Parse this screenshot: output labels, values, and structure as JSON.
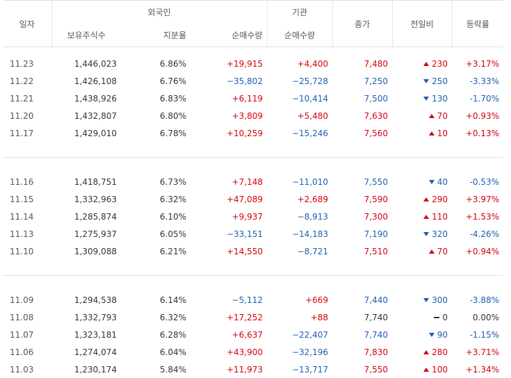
{
  "headers": {
    "date": "일자",
    "foreign": "외국인",
    "institution": "기관",
    "close": "종가",
    "change": "전일비",
    "rate": "등락률",
    "holdings": "보유주식수",
    "share_ratio": "지분율",
    "foreign_net": "순매수량",
    "inst_net": "순매수량"
  },
  "colors": {
    "up": "#d4000b",
    "down": "#1e5cb3",
    "neutral": "#333333"
  },
  "groups": [
    [
      {
        "date": "11.23",
        "holdings": "1,446,023",
        "ratio": "6.86%",
        "foreign_net": "+19,915",
        "foreign_dir": "up",
        "inst_net": "+4,400",
        "inst_dir": "up",
        "close": "7,480",
        "close_dir": "up",
        "change": "230",
        "change_dir": "up",
        "rate": "+3.17%"
      },
      {
        "date": "11.22",
        "holdings": "1,426,108",
        "ratio": "6.76%",
        "foreign_net": "−35,802",
        "foreign_dir": "dn",
        "inst_net": "−25,728",
        "inst_dir": "dn",
        "close": "7,250",
        "close_dir": "dn",
        "change": "250",
        "change_dir": "dn",
        "rate": "-3.33%"
      },
      {
        "date": "11.21",
        "holdings": "1,438,926",
        "ratio": "6.83%",
        "foreign_net": "+6,119",
        "foreign_dir": "up",
        "inst_net": "−10,414",
        "inst_dir": "dn",
        "close": "7,500",
        "close_dir": "dn",
        "change": "130",
        "change_dir": "dn",
        "rate": "-1.70%"
      },
      {
        "date": "11.20",
        "holdings": "1,432,807",
        "ratio": "6.80%",
        "foreign_net": "+3,809",
        "foreign_dir": "up",
        "inst_net": "+5,480",
        "inst_dir": "up",
        "close": "7,630",
        "close_dir": "up",
        "change": "70",
        "change_dir": "up",
        "rate": "+0.93%"
      },
      {
        "date": "11.17",
        "holdings": "1,429,010",
        "ratio": "6.78%",
        "foreign_net": "+10,259",
        "foreign_dir": "up",
        "inst_net": "−15,246",
        "inst_dir": "dn",
        "close": "7,560",
        "close_dir": "up",
        "change": "10",
        "change_dir": "up",
        "rate": "+0.13%"
      }
    ],
    [
      {
        "date": "11.16",
        "holdings": "1,418,751",
        "ratio": "6.73%",
        "foreign_net": "+7,148",
        "foreign_dir": "up",
        "inst_net": "−11,010",
        "inst_dir": "dn",
        "close": "7,550",
        "close_dir": "dn",
        "change": "40",
        "change_dir": "dn",
        "rate": "-0.53%"
      },
      {
        "date": "11.15",
        "holdings": "1,332,963",
        "ratio": "6.32%",
        "foreign_net": "+47,089",
        "foreign_dir": "up",
        "inst_net": "+2,689",
        "inst_dir": "up",
        "close": "7,590",
        "close_dir": "up",
        "change": "290",
        "change_dir": "up",
        "rate": "+3.97%"
      },
      {
        "date": "11.14",
        "holdings": "1,285,874",
        "ratio": "6.10%",
        "foreign_net": "+9,937",
        "foreign_dir": "up",
        "inst_net": "−8,913",
        "inst_dir": "dn",
        "close": "7,300",
        "close_dir": "up",
        "change": "110",
        "change_dir": "up",
        "rate": "+1.53%"
      },
      {
        "date": "11.13",
        "holdings": "1,275,937",
        "ratio": "6.05%",
        "foreign_net": "−33,151",
        "foreign_dir": "dn",
        "inst_net": "−14,183",
        "inst_dir": "dn",
        "close": "7,190",
        "close_dir": "dn",
        "change": "320",
        "change_dir": "dn",
        "rate": "-4.26%"
      },
      {
        "date": "11.10",
        "holdings": "1,309,088",
        "ratio": "6.21%",
        "foreign_net": "+14,550",
        "foreign_dir": "up",
        "inst_net": "−8,721",
        "inst_dir": "dn",
        "close": "7,510",
        "close_dir": "up",
        "change": "70",
        "change_dir": "up",
        "rate": "+0.94%"
      }
    ],
    [
      {
        "date": "11.09",
        "holdings": "1,294,538",
        "ratio": "6.14%",
        "foreign_net": "−5,112",
        "foreign_dir": "dn",
        "inst_net": "+669",
        "inst_dir": "up",
        "close": "7,440",
        "close_dir": "dn",
        "change": "300",
        "change_dir": "dn",
        "rate": "-3.88%"
      },
      {
        "date": "11.08",
        "holdings": "1,332,793",
        "ratio": "6.32%",
        "foreign_net": "+17,252",
        "foreign_dir": "up",
        "inst_net": "+88",
        "inst_dir": "up",
        "close": "7,740",
        "close_dir": "nt",
        "change": "0",
        "change_dir": "nt",
        "rate": "0.00%"
      },
      {
        "date": "11.07",
        "holdings": "1,323,181",
        "ratio": "6.28%",
        "foreign_net": "+6,637",
        "foreign_dir": "up",
        "inst_net": "−22,407",
        "inst_dir": "dn",
        "close": "7,740",
        "close_dir": "dn",
        "change": "90",
        "change_dir": "dn",
        "rate": "-1.15%"
      },
      {
        "date": "11.06",
        "holdings": "1,274,074",
        "ratio": "6.04%",
        "foreign_net": "+43,900",
        "foreign_dir": "up",
        "inst_net": "−32,196",
        "inst_dir": "dn",
        "close": "7,830",
        "close_dir": "up",
        "change": "280",
        "change_dir": "up",
        "rate": "+3.71%"
      },
      {
        "date": "11.03",
        "holdings": "1,230,174",
        "ratio": "5.84%",
        "foreign_net": "+11,973",
        "foreign_dir": "up",
        "inst_net": "−13,717",
        "inst_dir": "dn",
        "close": "7,550",
        "close_dir": "up",
        "change": "100",
        "change_dir": "up",
        "rate": "+1.34%"
      }
    ]
  ]
}
